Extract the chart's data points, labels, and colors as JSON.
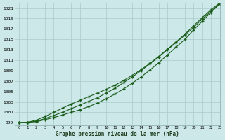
{
  "bg_color": "#cce8e8",
  "grid_color": "#aacccc",
  "line_color": "#1a5c1a",
  "marker_color": "#1a5c1a",
  "xlabel": "Graphe pression niveau de la mer (hPa)",
  "xlim": [
    -0.5,
    23
  ],
  "ylim": [
    998.5,
    1022.0
  ],
  "yticks": [
    999,
    1001,
    1003,
    1005,
    1007,
    1009,
    1011,
    1013,
    1015,
    1017,
    1019,
    1021
  ],
  "xticks": [
    0,
    1,
    2,
    3,
    4,
    5,
    6,
    7,
    8,
    9,
    10,
    11,
    12,
    13,
    14,
    15,
    16,
    17,
    18,
    19,
    20,
    21,
    22,
    23
  ],
  "line1": [
    999.0,
    999.1,
    999.2,
    999.6,
    1000.0,
    1000.5,
    1001.0,
    1001.5,
    1002.1,
    1002.8,
    1003.6,
    1004.5,
    1005.5,
    1006.6,
    1007.8,
    1009.1,
    1010.5,
    1012.0,
    1013.5,
    1015.0,
    1016.8,
    1018.5,
    1020.2,
    1021.8
  ],
  "line2": [
    999.0,
    999.1,
    999.3,
    999.8,
    1000.4,
    1001.0,
    1001.7,
    1002.4,
    1003.1,
    1003.8,
    1004.7,
    1005.6,
    1006.7,
    1007.8,
    1009.0,
    1010.3,
    1011.6,
    1013.0,
    1014.4,
    1015.8,
    1017.3,
    1018.9,
    1020.4,
    1021.9
  ],
  "line3": [
    999.0,
    999.1,
    999.5,
    1000.2,
    1001.0,
    1001.8,
    1002.6,
    1003.3,
    1004.0,
    1004.7,
    1005.4,
    1006.2,
    1007.1,
    1008.1,
    1009.2,
    1010.4,
    1011.7,
    1013.1,
    1014.5,
    1016.0,
    1017.6,
    1019.2,
    1020.7,
    1022.0
  ]
}
